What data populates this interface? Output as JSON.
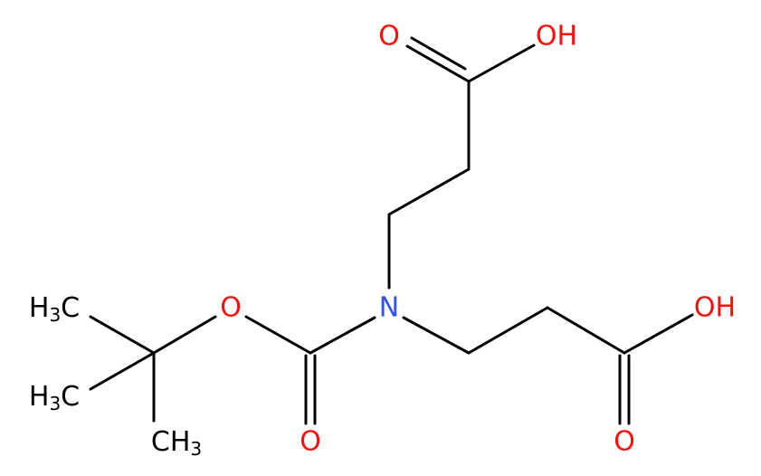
{
  "atoms": [
    {
      "label": "O"
    },
    {
      "label": "OH"
    },
    {
      "label": "N"
    },
    {
      "label": "O"
    },
    {
      "label": "O"
    },
    {
      "label": "OH"
    },
    {
      "label": "O"
    },
    {
      "parts": [
        "H",
        "3",
        "C"
      ]
    },
    {
      "parts": [
        "H",
        "3",
        "C"
      ]
    },
    {
      "parts": [
        "CH",
        "3"
      ]
    }
  ]
}
